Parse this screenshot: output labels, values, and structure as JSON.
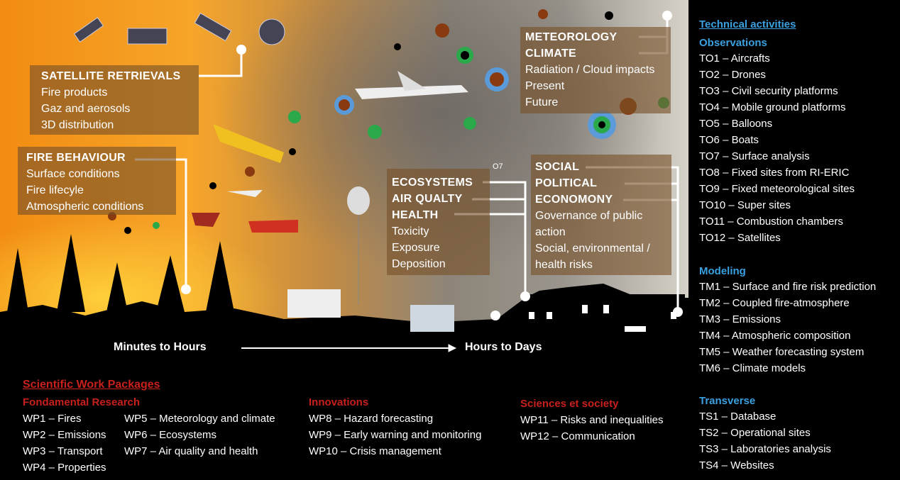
{
  "illustration": {
    "satellite": {
      "title": "SATELLITE RETRIEVALS",
      "items": [
        "Fire products",
        "Gaz and aerosols",
        "3D distribution"
      ]
    },
    "fire": {
      "title": "FIRE BEHAVIOUR",
      "items": [
        "Surface conditions",
        "Fire lifecyle",
        "Atmospheric conditions"
      ]
    },
    "meteo": {
      "titles": [
        "METEOROLOGY",
        "CLIMATE"
      ],
      "items": [
        "Radiation / Cloud impacts",
        "Present",
        "Future"
      ]
    },
    "health": {
      "titles": [
        "ECOSYSTEMS",
        "AIR QUALTY",
        "HEALTH"
      ],
      "items": [
        "Toxicity",
        "Exposure",
        "Deposition"
      ],
      "tag": "O7"
    },
    "social": {
      "titles": [
        "SOCIAL",
        "POLITICAL",
        "ECONOMONY"
      ],
      "items": [
        "Governance of public action",
        "Social, environmental / health risks"
      ]
    },
    "timeline": [
      "Minutes to Hours",
      "Hours to Days"
    ]
  },
  "work_packages": {
    "title": "Scientific Work Packages",
    "groups": [
      {
        "title": "Fondamental Research",
        "items": [
          [
            "WP1 – Fires",
            "WP2 – Emissions",
            "WP3 – Transport",
            "WP4 – Properties"
          ],
          [
            "WP5 – Meteorology and climate",
            "WP6 – Ecosystems",
            "WP7 – Air quality and health"
          ]
        ]
      },
      {
        "title": "Innovations",
        "items": [
          "WP8 – Hazard forecasting",
          "WP9 – Early warning and monitoring",
          "WP10 – Crisis management"
        ]
      },
      {
        "title": "Sciences et society",
        "items": [
          "WP11 – Risks and inequalities",
          "WP12 – Communication"
        ]
      }
    ]
  },
  "technical": {
    "title": "Technical activities",
    "groups": [
      {
        "title": "Observations",
        "items": [
          "TO1 – Aircrafts",
          "TO2 – Drones",
          "TO3 – Civil security platforms",
          "TO4 – Mobile ground platforms",
          "TO5 – Balloons",
          "TO6 – Boats",
          "TO7 – Surface analysis",
          "TO8 – Fixed sites from RI-ERIC",
          "TO9 – Fixed meteorological sites",
          "TO10 – Super sites",
          "TO11 – Combustion chambers",
          "TO12 – Satellites"
        ]
      },
      {
        "title": "Modeling",
        "items": [
          "TM1 – Surface and fire risk prediction",
          "TM2 – Coupled fire-atmosphere",
          "TM3 – Emissions",
          "TM4 – Atmospheric composition",
          "TM5 – Weather forecasting system",
          "TM6 – Climate models"
        ]
      },
      {
        "title": "Transverse",
        "items": [
          "TS1 – Database",
          "TS2 – Operational sites",
          "TS3 – Laboratories analysis",
          "TS4 – Websites"
        ]
      }
    ]
  }
}
